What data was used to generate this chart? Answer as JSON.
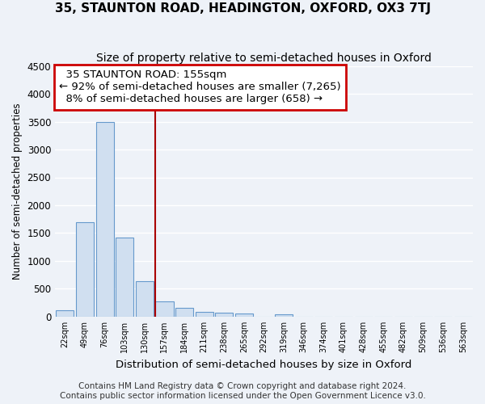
{
  "title": "35, STAUNTON ROAD, HEADINGTON, OXFORD, OX3 7TJ",
  "subtitle": "Size of property relative to semi-detached houses in Oxford",
  "xlabel": "Distribution of semi-detached houses by size in Oxford",
  "ylabel": "Number of semi-detached properties",
  "bar_color": "#d0dff0",
  "bar_edge_color": "#6699cc",
  "annotation_box_edge": "#cc0000",
  "vline_color": "#aa0000",
  "background_color": "#eef2f8",
  "grid_color": "#ffffff",
  "bins": [
    "22sqm",
    "49sqm",
    "76sqm",
    "103sqm",
    "130sqm",
    "157sqm",
    "184sqm",
    "211sqm",
    "238sqm",
    "265sqm",
    "292sqm",
    "319sqm",
    "346sqm",
    "374sqm",
    "401sqm",
    "428sqm",
    "455sqm",
    "482sqm",
    "509sqm",
    "536sqm",
    "563sqm"
  ],
  "values": [
    110,
    1700,
    3490,
    1420,
    630,
    270,
    160,
    90,
    75,
    55,
    0,
    40,
    0,
    0,
    0,
    0,
    0,
    0,
    0,
    0,
    0
  ],
  "property_label": "35 STAUNTON ROAD: 155sqm",
  "pct_smaller": 92,
  "pct_larger": 8,
  "n_smaller": 7265,
  "n_larger": 658,
  "ylim": [
    0,
    4500
  ],
  "yticks": [
    0,
    500,
    1000,
    1500,
    2000,
    2500,
    3000,
    3500,
    4000,
    4500
  ],
  "vline_x_index": 4.55,
  "footer1": "Contains HM Land Registry data © Crown copyright and database right 2024.",
  "footer2": "Contains public sector information licensed under the Open Government Licence v3.0.",
  "title_fontsize": 11,
  "subtitle_fontsize": 10,
  "annotation_fontsize": 9.5,
  "footer_fontsize": 7.5
}
